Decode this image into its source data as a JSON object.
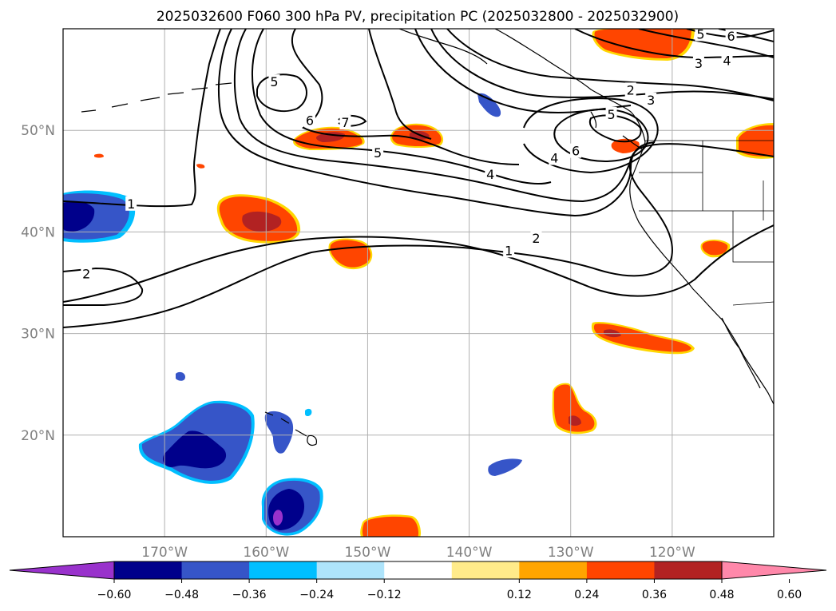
{
  "title": "2025032600 F060 300 hPa PV, precipitation PC (2025032800 - 2025032900)",
  "map": {
    "lon_range": [
      -180,
      -110
    ],
    "lat_range": [
      10,
      60
    ],
    "lat_ticks": [
      {
        "value": 50,
        "label": "50°N"
      },
      {
        "value": 40,
        "label": "40°N"
      },
      {
        "value": 30,
        "label": "30°N"
      },
      {
        "value": 20,
        "label": "20°N"
      }
    ],
    "lon_ticks": [
      {
        "value": -170,
        "label": "170°W"
      },
      {
        "value": -160,
        "label": "160°W"
      },
      {
        "value": -150,
        "label": "150°W"
      },
      {
        "value": -140,
        "label": "140°W"
      },
      {
        "value": -130,
        "label": "130°W"
      },
      {
        "value": -120,
        "label": "120°W"
      }
    ],
    "grid": true
  },
  "contour_labels": [
    {
      "text": "1",
      "lon": -173.3,
      "lat": 42.8
    },
    {
      "text": "2",
      "lon": -177.7,
      "lat": 35.9
    },
    {
      "text": "5",
      "lon": -159.2,
      "lat": 54.8
    },
    {
      "text": "6",
      "lon": -155.7,
      "lat": 51.0
    },
    {
      "text": "7",
      "lon": -152.2,
      "lat": 50.8
    },
    {
      "text": "5",
      "lon": -149.0,
      "lat": 47.8
    },
    {
      "text": "4",
      "lon": -137.9,
      "lat": 45.7
    },
    {
      "text": "2",
      "lon": -133.4,
      "lat": 39.4
    },
    {
      "text": "1",
      "lon": -136.1,
      "lat": 38.2
    },
    {
      "text": "4",
      "lon": -131.6,
      "lat": 47.3
    },
    {
      "text": "6",
      "lon": -129.5,
      "lat": 48.0
    },
    {
      "text": "5",
      "lon": -126.0,
      "lat": 51.6
    },
    {
      "text": "2",
      "lon": -124.1,
      "lat": 54.0
    },
    {
      "text": "3",
      "lon": -122.1,
      "lat": 53.0
    },
    {
      "text": "3",
      "lon": -117.4,
      "lat": 56.6
    },
    {
      "text": "4",
      "lon": -114.6,
      "lat": 56.9
    },
    {
      "text": "5",
      "lon": -117.2,
      "lat": 59.5
    },
    {
      "text": "6",
      "lon": -114.2,
      "lat": 59.3
    }
  ],
  "colorbar": {
    "ticks": [
      "−0.60",
      "−0.48",
      "−0.36",
      "−0.24",
      "−0.12",
      "0.12",
      "0.24",
      "0.36",
      "0.48",
      "0.60"
    ],
    "under_color": "#9932cc",
    "over_color": "#ff88aa",
    "colors": [
      "#00008b",
      "#3655c8",
      "#00bfff",
      "#aee4fb",
      "#ffffff",
      "#ffeb8a",
      "#ffa500",
      "#ff4500",
      "#b22222"
    ]
  },
  "shading_colors": {
    "neg_weak": "#00bfff",
    "neg_mid": "#3655c8",
    "neg_strong": "#00008b",
    "neg_extreme": "#9932cc",
    "pos_weak": "#ffd700",
    "pos_mid": "#ff4500",
    "pos_strong": "#b22222"
  }
}
